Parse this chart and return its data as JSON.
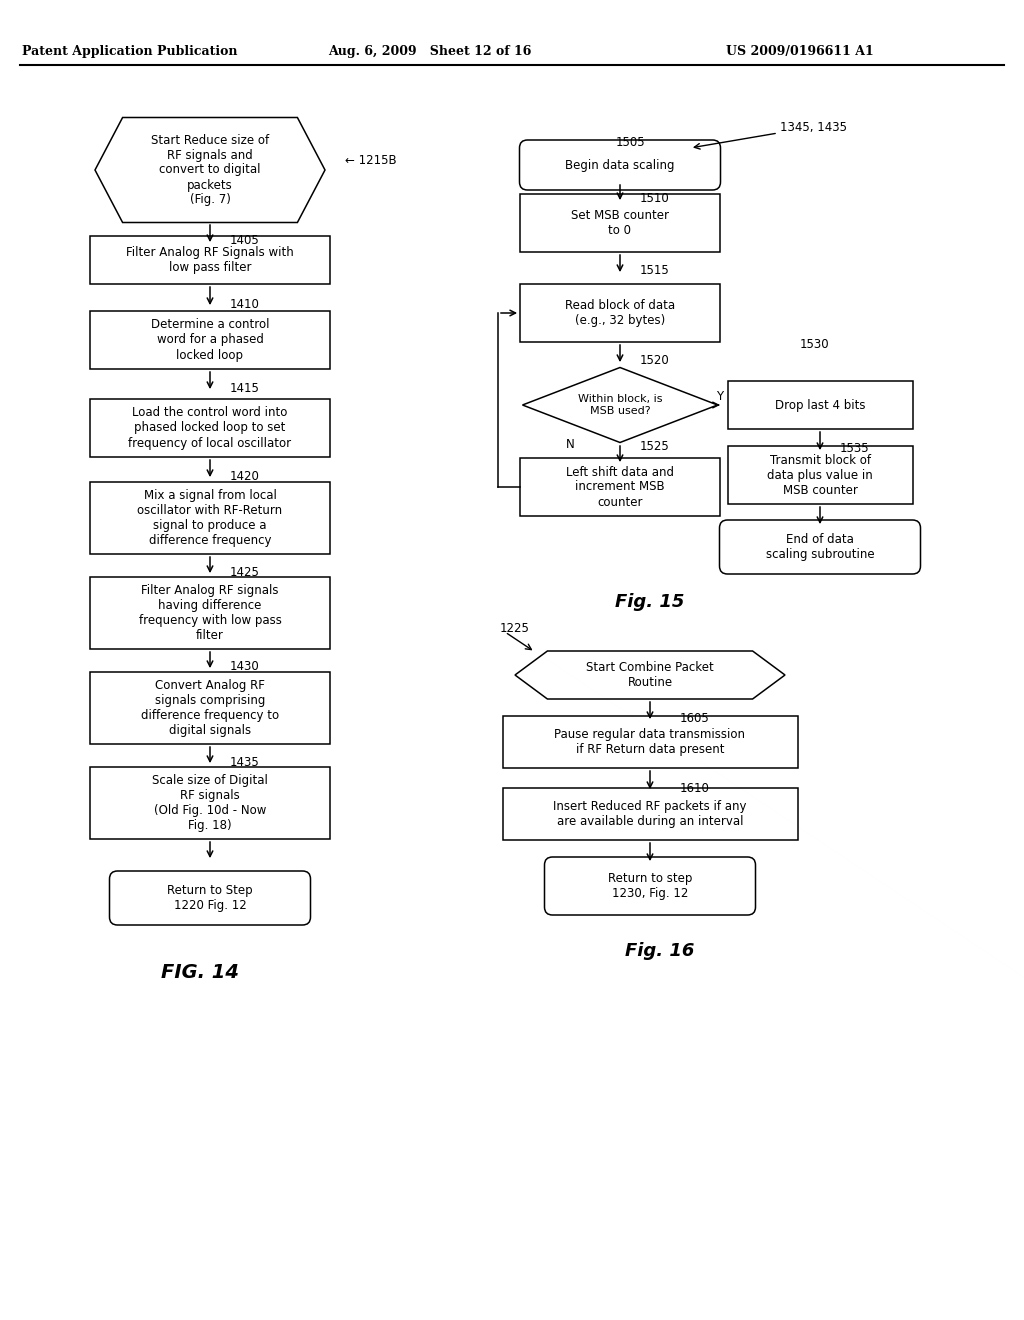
{
  "title_left": "Patent Application Publication",
  "title_mid": "Aug. 6, 2009   Sheet 12 of 16",
  "title_right": "US 2009/0196611 A1",
  "bg_color": "#ffffff"
}
